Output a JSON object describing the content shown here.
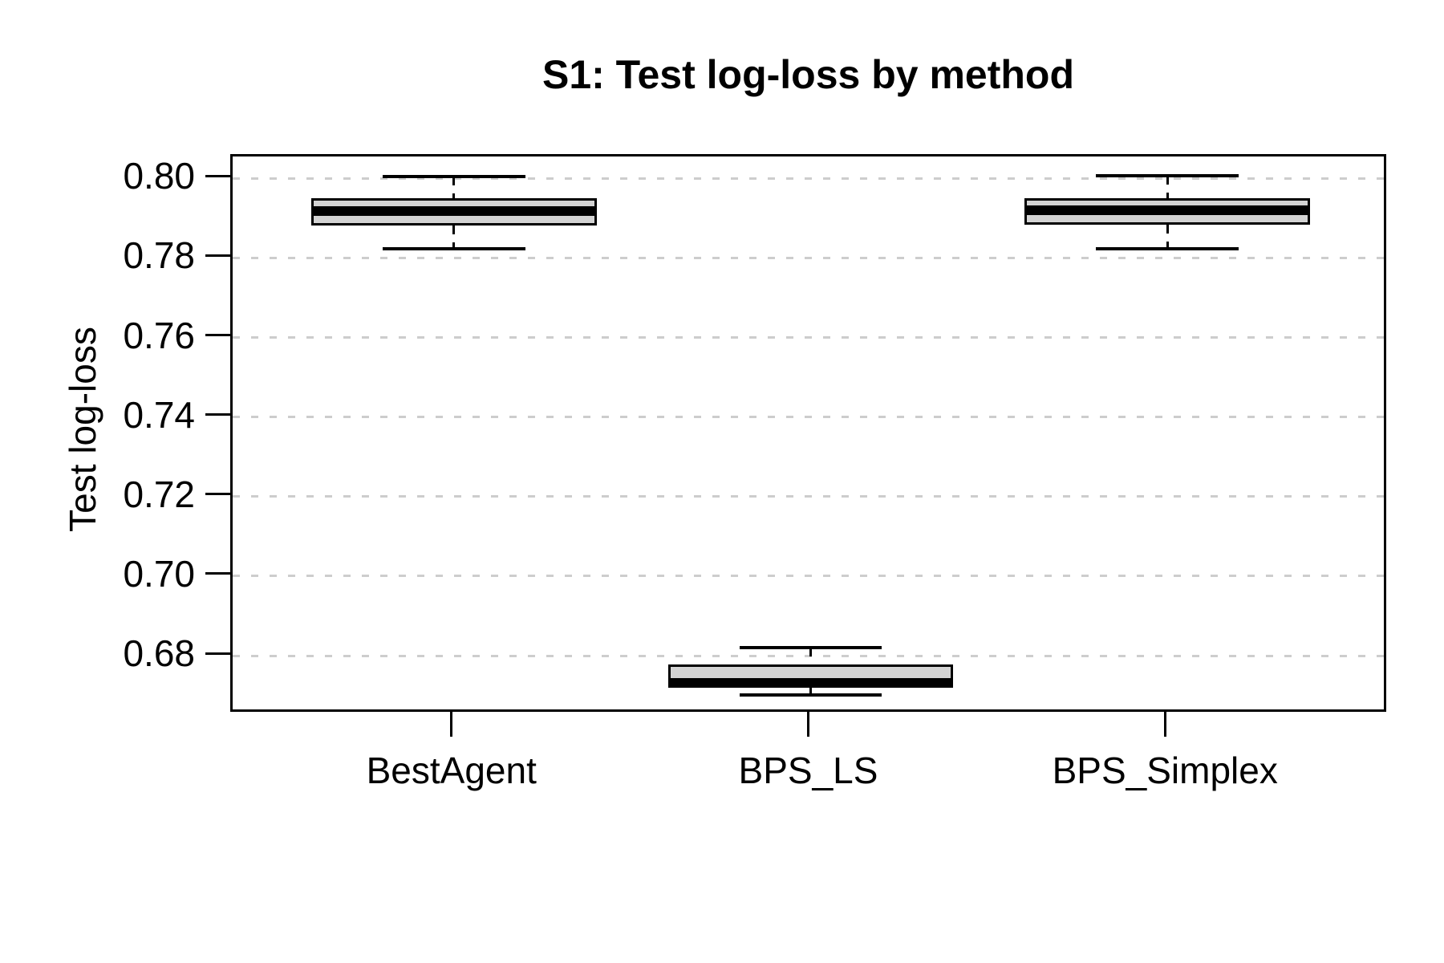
{
  "chart_data": {
    "type": "boxplot",
    "title": "S1: Test log-loss by method",
    "xlabel": "",
    "ylabel": "Test log-loss",
    "categories": [
      "BestAgent",
      "BPS_LS",
      "BPS_Simplex"
    ],
    "series": [
      {
        "name": "BestAgent",
        "whisker_low": 0.7823,
        "q1": 0.7882,
        "median": 0.7918,
        "q3": 0.795,
        "whisker_high": 0.8005
      },
      {
        "name": "BPS_LS",
        "whisker_low": 0.6701,
        "q1": 0.6721,
        "median": 0.6731,
        "q3": 0.6778,
        "whisker_high": 0.682
      },
      {
        "name": "BPS_Simplex",
        "whisker_low": 0.7824,
        "q1": 0.7884,
        "median": 0.792,
        "q3": 0.7951,
        "whisker_high": 0.8006
      }
    ],
    "y_ticks": [
      {
        "value": 0.68,
        "label": "0.68"
      },
      {
        "value": 0.7,
        "label": "0.70"
      },
      {
        "value": 0.72,
        "label": "0.72"
      },
      {
        "value": 0.74,
        "label": "0.74"
      },
      {
        "value": 0.76,
        "label": "0.76"
      },
      {
        "value": 0.78,
        "label": "0.78"
      },
      {
        "value": 0.8,
        "label": "0.80"
      }
    ],
    "ylim": [
      0.6653,
      0.8055
    ],
    "grid": "horizontal-dashed",
    "legend": "none",
    "colors": {
      "box_fill": "#d3d3d3",
      "box_border": "#000000",
      "median": "#000000",
      "whisker": "#000000",
      "grid": "#cdcdcd",
      "axis": "#000000",
      "text": "#000000",
      "background": "#ffffff"
    }
  }
}
